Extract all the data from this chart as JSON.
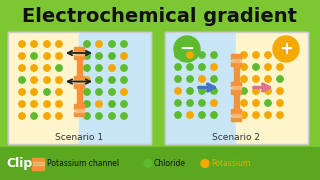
{
  "title": "Electrochemical gradient",
  "title_fontsize": 14,
  "bg_color": "#7DC832",
  "scenario1_label": "Scenario 1",
  "scenario2_label": "Scenario 2",
  "legend_clip": "Clip",
  "legend_items": [
    {
      "label": "Potassium channel",
      "color": "#F4923A"
    },
    {
      "label": "Chloride",
      "color": "#5DBB2E"
    },
    {
      "label": "Potassium",
      "color": "#F5A800"
    }
  ],
  "s1_left_bg": "#FFF5CC",
  "s1_right_bg": "#C8E6F5",
  "s2_left_bg": "#C8E6F5",
  "s2_right_bg": "#FFF5CC",
  "channel_color": "#F4923A",
  "channel_light": "#F7C080",
  "arrow_black": "#222222",
  "arrow_blue": "#4472C4",
  "arrow_pink": "#E07090",
  "dot_green": "#5DBB2E",
  "dot_orange": "#F5A800",
  "neg_circle_color": "#5DBB2E",
  "pos_circle_color": "#F5A800",
  "panel_border": "#CCCCCC",
  "legend_bg": "#5AA820",
  "clip_color": "#FFFFFF",
  "s1x": 8,
  "s1y": 32,
  "s1w": 143,
  "s1h": 112,
  "s2x": 165,
  "s2y": 32,
  "s2w": 143,
  "s2h": 112
}
